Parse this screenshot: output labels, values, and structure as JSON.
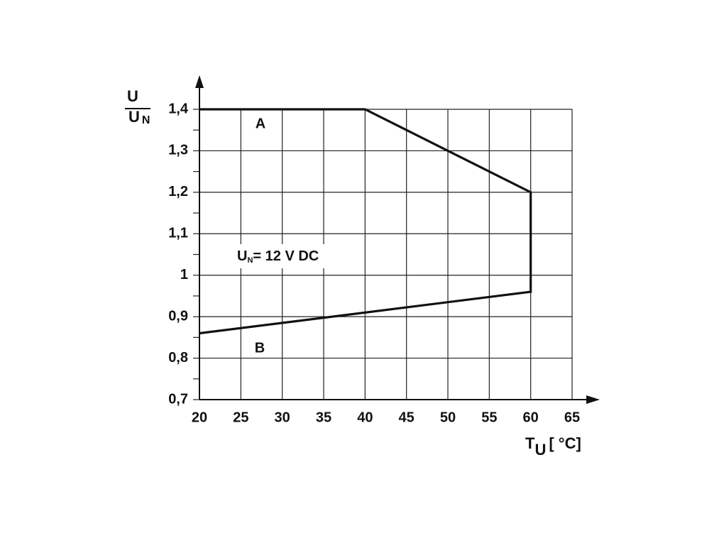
{
  "chart_data": {
    "type": "line",
    "y_label": {
      "numerator": "U",
      "denominator": "U",
      "denominator_subscript": "N"
    },
    "x_label": {
      "text": "T",
      "subscript": "U",
      "unit": "[ °C]"
    },
    "annotation": {
      "text": "U",
      "subscript": "N",
      "rest": "= 12 V DC"
    },
    "curve_labels": [
      "A",
      "B"
    ],
    "x": [
      20,
      40,
      60,
      60,
      20
    ],
    "values": [
      1.4,
      1.4,
      1.2,
      0.96,
      0.86
    ],
    "color": "#111111",
    "xlim": [
      20,
      65
    ],
    "ylim": [
      0.7,
      1.4
    ],
    "xticks": [
      20,
      25,
      30,
      35,
      40,
      45,
      50,
      55,
      60,
      65
    ],
    "yticks": [
      {
        "value": 0.7,
        "label": "0,7"
      },
      {
        "value": 0.8,
        "label": "0,8"
      },
      {
        "value": 0.9,
        "label": "0,9"
      },
      1,
      {
        "value": 1.1,
        "label": "1,1"
      },
      {
        "value": 1.2,
        "label": "1,2"
      },
      {
        "value": 1.3,
        "label": "1,3"
      },
      {
        "value": 1.4,
        "label": "1,4"
      }
    ],
    "yminorticks": [
      0.75,
      0.85,
      0.95,
      1.05,
      1.15,
      1.25,
      1.35
    ],
    "grid": true
  }
}
